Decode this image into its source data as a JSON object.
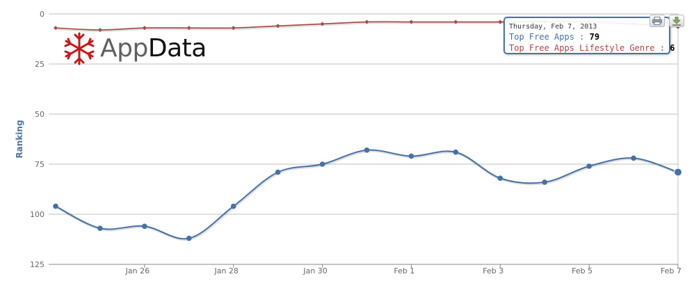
{
  "chart_data": {
    "type": "line",
    "ylabel": "Ranking",
    "y_reversed": true,
    "ylim": [
      0,
      125
    ],
    "yticks": [
      0,
      25,
      50,
      75,
      100,
      125
    ],
    "x": [
      "Jan 24",
      "Jan 25",
      "Jan 26",
      "Jan 27",
      "Jan 28",
      "Jan 29",
      "Jan 30",
      "Jan 31",
      "Feb 1",
      "Feb 2",
      "Feb 3",
      "Feb 4",
      "Feb 5",
      "Feb 6",
      "Feb 7"
    ],
    "xtick_labels": [
      "Jan 26",
      "Jan 28",
      "Jan 30",
      "Feb 1",
      "Feb 3",
      "Feb 5",
      "Feb 7"
    ],
    "grid": true,
    "series": [
      {
        "name": "Top Free Apps",
        "color": "#4572a7",
        "values": [
          96,
          107,
          106,
          112,
          96,
          79,
          75,
          68,
          71,
          69,
          82,
          84,
          76,
          72,
          79
        ]
      },
      {
        "name": "Top Free Apps Lifestyle Genre",
        "color": "#aa4643",
        "values": [
          7,
          8,
          7,
          7,
          7,
          6,
          5,
          4,
          4,
          4,
          4,
          4,
          4,
          5,
          6
        ]
      }
    ],
    "hover_index": 14
  },
  "logo": {
    "part1": "App",
    "part2": "Data"
  },
  "tooltip": {
    "date": "Thursday, Feb 7, 2013",
    "s1_label": "Top Free Apps",
    "s1_value": "79",
    "s2_label": "Top Free Apps Lifestyle Genre",
    "s2_value": "6",
    "separator": ":"
  },
  "toolbar": {
    "print_icon": "printer-icon",
    "export_icon": "download-icon"
  },
  "colors": {
    "grid": "#c0c0c0",
    "axis_text": "#666666",
    "ylabel": "#4d759e",
    "logo_red": "#cc1414"
  }
}
